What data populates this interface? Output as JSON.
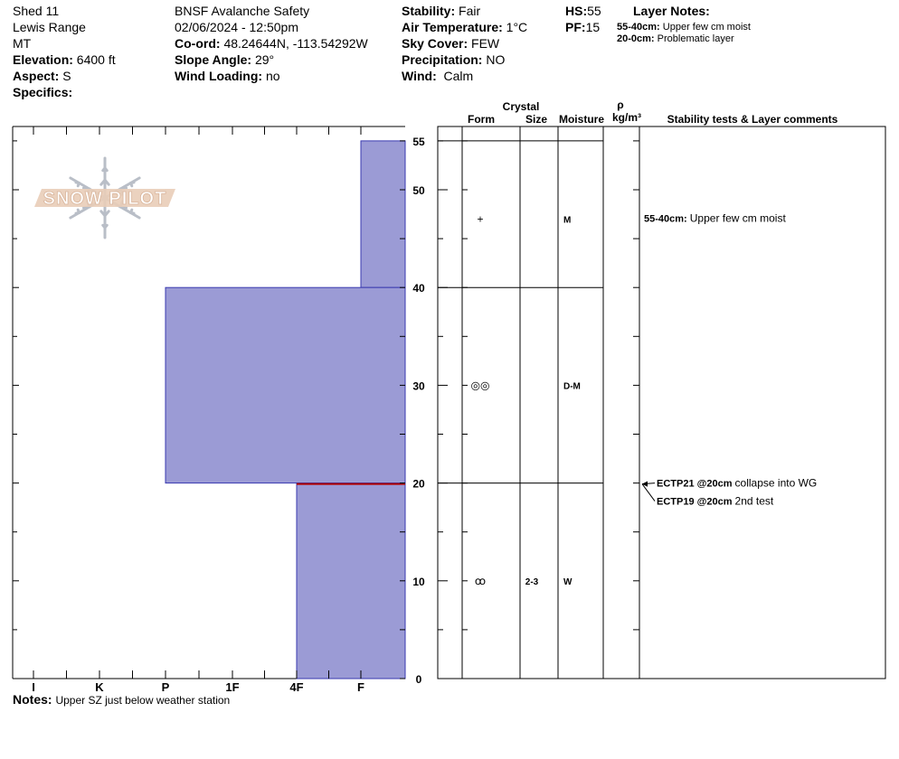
{
  "site": {
    "name": "Shed 11",
    "range": "Lewis Range",
    "state": "MT",
    "elevation_label": "Elevation:",
    "elevation_value": "6400 ft",
    "aspect_label": "Aspect:",
    "aspect_value": "S",
    "specifics_label": "Specifics:"
  },
  "obs": {
    "org": "BNSF Avalanche Safety",
    "datetime": "02/06/2024 - 12:50pm",
    "coord_label": "Co-ord:",
    "coord_value": "48.24644N, -113.54292W",
    "slope_label": "Slope Angle:",
    "slope_value": "29°",
    "wind_loading_label": "Wind Loading:",
    "wind_loading_value": "no"
  },
  "weather": {
    "stability_label": "Stability:",
    "stability_value": "Fair",
    "air_temp_label": "Air Temperature:",
    "air_temp_value": "1°C",
    "sky_label": "Sky Cover:",
    "sky_value": "FEW",
    "precip_label": "Precipitation:",
    "precip_value": "NO",
    "wind_label": "Wind:",
    "wind_value": "Calm"
  },
  "depth": {
    "hs_label": "HS:",
    "hs_value": "55",
    "pf_label": "PF:",
    "pf_value": "15"
  },
  "layer_notes": {
    "title": "Layer Notes:",
    "items": [
      {
        "range": "55-40cm:",
        "text": "Upper few cm moist"
      },
      {
        "range": "20-0cm:",
        "text": "Problematic layer"
      }
    ]
  },
  "table_headers": {
    "crystal": "Crystal",
    "form": "Form",
    "size": "Size",
    "moisture": "Moisture",
    "rho": "ρ",
    "density_unit": "kg/m³",
    "stability": "Stability tests & Layer comments"
  },
  "logo_text": "SNOW PILOT",
  "footer": {
    "notes_label": "Notes:",
    "notes_value": "Upper SZ just below weather station"
  },
  "colors": {
    "layer_fill": "#9b9bd5",
    "layer_stroke": "#3a3ab0",
    "weak_layer": "#b00000",
    "logo": "#e9cdb8"
  },
  "chart_data": {
    "type": "snow_profile",
    "height_axis": {
      "min": 0,
      "max": 55,
      "ticks": [
        0,
        10,
        20,
        30,
        40,
        50,
        55
      ],
      "unit": "cm"
    },
    "hardness_axis": {
      "categories": [
        "I",
        "K",
        "P",
        "1F",
        "4F",
        "F"
      ]
    },
    "layers": [
      {
        "top": 55,
        "bottom": 40,
        "hardness": "F",
        "form_symbol": "+",
        "size": "",
        "moisture": "M"
      },
      {
        "top": 40,
        "bottom": 20,
        "hardness": "P",
        "form_symbol": "◎◎",
        "size": "",
        "moisture": "D-M"
      },
      {
        "top": 20,
        "bottom": 0,
        "hardness": "4F",
        "form_symbol": "ꝏ",
        "size": "2-3",
        "moisture": "W"
      }
    ],
    "weak_layer_height": 20,
    "layer_comments": [
      {
        "height": 47,
        "range": "55-40cm:",
        "text": "Upper few cm moist"
      }
    ],
    "tests": [
      {
        "height": 20,
        "code": "ECTP21 @20cm",
        "text": "collapse into WG"
      },
      {
        "height": 20,
        "code": "ECTP19 @20cm",
        "text": "2nd test"
      }
    ]
  }
}
